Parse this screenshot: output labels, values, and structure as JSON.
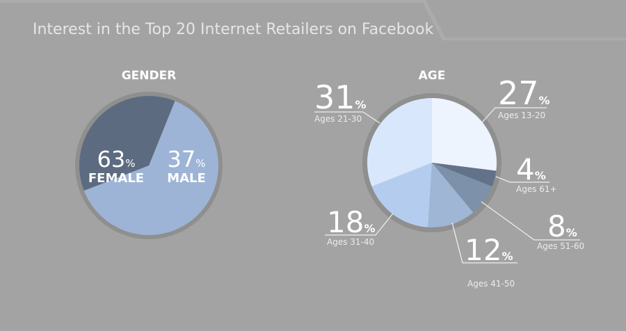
{
  "chart_data": [
    {
      "type": "pie",
      "title": "Interest in the Top 20 Internet Retailers on Facebook",
      "heading": "GENDER",
      "unit": "%",
      "slices": [
        {
          "label": "FEMALE",
          "value": 63,
          "color": "#9db4d6"
        },
        {
          "label": "MALE",
          "value": 37,
          "color": "#5d6b81"
        }
      ]
    },
    {
      "type": "pie",
      "heading": "AGE",
      "unit": "%",
      "slices": [
        {
          "label": "Ages 13-20",
          "value": 27,
          "color": "#edf4fe"
        },
        {
          "label": "Ages 61+",
          "value": 4,
          "color": "#627389"
        },
        {
          "label": "Ages 51-60",
          "value": 8,
          "color": "#7d91ab"
        },
        {
          "label": "Ages 41-50",
          "value": 12,
          "color": "#9fb6d5"
        },
        {
          "label": "Ages 31-40",
          "value": 18,
          "color": "#b4cdef"
        },
        {
          "label": "Ages 21-30",
          "value": 31,
          "color": "#d8e7fc"
        }
      ]
    }
  ]
}
